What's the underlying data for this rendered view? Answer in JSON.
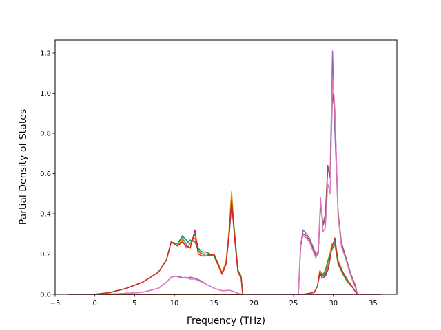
{
  "chart_data": {
    "type": "line",
    "title": "",
    "xlabel": "Frequency (THz)",
    "ylabel": "Partial Density of States",
    "xlim": [
      -5.0,
      38.0
    ],
    "ylim": [
      0.0,
      1.265
    ],
    "grid": false,
    "x_ticks": [
      -5,
      0,
      5,
      10,
      15,
      20,
      25,
      30,
      35
    ],
    "x_tick_labels": [
      "−5",
      "0",
      "5",
      "10",
      "15",
      "20",
      "25",
      "30",
      "35"
    ],
    "y_ticks": [
      0.0,
      0.2,
      0.4,
      0.6,
      0.8,
      1.0,
      1.2
    ],
    "y_tick_labels": [
      "0.0",
      "0.2",
      "0.4",
      "0.6",
      "0.8",
      "1.0",
      "1.2"
    ],
    "series": [
      {
        "color": "#1f77b4",
        "x": [
          -3.3,
          0,
          2,
          4,
          6,
          8,
          9,
          9.6,
          10.4,
          11.0,
          11.5,
          12.0,
          12.6,
          13.0,
          13.5,
          14.0,
          15.0,
          16.0,
          16.5,
          16.9,
          17.2,
          17.6,
          18.0,
          18.4,
          18.6,
          36.0
        ],
        "y": [
          0,
          0,
          0.01,
          0.03,
          0.06,
          0.11,
          0.17,
          0.26,
          0.25,
          0.29,
          0.27,
          0.25,
          0.3,
          0.23,
          0.21,
          0.21,
          0.19,
          0.1,
          0.15,
          0.3,
          0.44,
          0.3,
          0.12,
          0.09,
          0,
          0
        ]
      },
      {
        "color": "#ff7f0e",
        "x": [
          -3.3,
          0,
          2,
          4,
          6,
          8,
          9,
          9.6,
          10.4,
          11.0,
          11.5,
          12.0,
          12.6,
          13.0,
          13.5,
          14.0,
          15.0,
          16.0,
          16.5,
          16.9,
          17.2,
          17.6,
          18.0,
          18.4,
          18.6,
          36.0
        ],
        "y": [
          0,
          0,
          0.01,
          0.03,
          0.06,
          0.11,
          0.17,
          0.26,
          0.24,
          0.27,
          0.23,
          0.25,
          0.28,
          0.21,
          0.2,
          0.19,
          0.2,
          0.11,
          0.16,
          0.33,
          0.51,
          0.28,
          0.11,
          0.08,
          0,
          0
        ]
      },
      {
        "color": "#2ca02c",
        "x": [
          -3.3,
          0,
          2,
          4,
          6,
          8,
          9,
          9.6,
          10.4,
          11.0,
          11.5,
          12.0,
          12.6,
          13.0,
          13.5,
          14.0,
          15.0,
          16.0,
          16.5,
          16.9,
          17.2,
          17.6,
          18.0,
          18.4,
          18.6,
          36.0
        ],
        "y": [
          0,
          0,
          0.01,
          0.03,
          0.06,
          0.11,
          0.17,
          0.26,
          0.25,
          0.28,
          0.25,
          0.27,
          0.26,
          0.22,
          0.2,
          0.2,
          0.19,
          0.1,
          0.15,
          0.31,
          0.47,
          0.29,
          0.12,
          0.09,
          0,
          0
        ]
      },
      {
        "color": "#d62728",
        "x": [
          -3.3,
          0,
          2,
          4,
          6,
          8,
          9,
          9.6,
          10.4,
          11.0,
          11.5,
          12.0,
          12.6,
          13.0,
          13.5,
          14.0,
          15.0,
          16.0,
          16.5,
          16.9,
          17.2,
          17.6,
          18.0,
          18.4,
          18.6,
          36.0
        ],
        "y": [
          0,
          0,
          0.01,
          0.03,
          0.06,
          0.11,
          0.17,
          0.26,
          0.24,
          0.26,
          0.24,
          0.23,
          0.32,
          0.2,
          0.19,
          0.19,
          0.2,
          0.1,
          0.15,
          0.3,
          0.46,
          0.27,
          0.11,
          0.08,
          0,
          0
        ]
      },
      {
        "color": "#9467bd",
        "x": [
          -3.3,
          25.6,
          25.9,
          26.2,
          26.6,
          27.0,
          27.4,
          27.8,
          28.1,
          28.4,
          28.7,
          29.0,
          29.3,
          29.6,
          29.9,
          30.2,
          30.6,
          31.0,
          31.6,
          32.2,
          32.8,
          33.0,
          36.0
        ],
        "y": [
          0,
          0,
          0.25,
          0.32,
          0.3,
          0.28,
          0.24,
          0.2,
          0.21,
          0.46,
          0.35,
          0.4,
          0.62,
          0.6,
          1.21,
          0.8,
          0.4,
          0.25,
          0.18,
          0.1,
          0.04,
          0,
          0
        ]
      },
      {
        "color": "#8c564b",
        "x": [
          -3.3,
          25.6,
          25.9,
          26.2,
          26.6,
          27.0,
          27.4,
          27.8,
          28.1,
          28.4,
          28.7,
          29.0,
          29.3,
          29.6,
          29.9,
          30.2,
          30.6,
          31.0,
          31.6,
          32.2,
          32.8,
          33.0,
          36.0
        ],
        "y": [
          0,
          0,
          0.24,
          0.3,
          0.29,
          0.27,
          0.23,
          0.19,
          0.2,
          0.45,
          0.34,
          0.38,
          0.64,
          0.58,
          1.0,
          0.9,
          0.41,
          0.26,
          0.18,
          0.1,
          0.04,
          0,
          0
        ]
      },
      {
        "color": "#e377c2",
        "x": [
          -3.3,
          25.6,
          25.9,
          26.2,
          26.6,
          27.0,
          27.4,
          27.8,
          28.1,
          28.4,
          28.7,
          29.0,
          29.3,
          29.6,
          29.9,
          30.2,
          30.6,
          31.0,
          31.6,
          32.2,
          32.8,
          33.0,
          36.0
        ],
        "y": [
          0,
          0,
          0.26,
          0.29,
          0.28,
          0.26,
          0.22,
          0.18,
          0.22,
          0.48,
          0.31,
          0.33,
          0.55,
          0.5,
          1.08,
          0.92,
          0.39,
          0.24,
          0.17,
          0.09,
          0.03,
          0,
          0
        ]
      },
      {
        "color": "#1f77b4",
        "x": [
          -3.3,
          25.6,
          26.2,
          27.0,
          27.6,
          28.0,
          28.3,
          28.6,
          29.0,
          29.4,
          29.8,
          30.2,
          30.6,
          31.2,
          31.8,
          32.5,
          33.0,
          36.0
        ],
        "y": [
          0,
          0,
          0,
          0.005,
          0.01,
          0.04,
          0.11,
          0.09,
          0.1,
          0.15,
          0.24,
          0.26,
          0.16,
          0.11,
          0.07,
          0.03,
          0,
          0
        ]
      },
      {
        "color": "#ff7f0e",
        "x": [
          -3.3,
          25.6,
          26.2,
          27.0,
          27.6,
          28.0,
          28.3,
          28.6,
          29.0,
          29.4,
          29.8,
          30.2,
          30.6,
          31.2,
          31.8,
          32.5,
          33.0,
          36.0
        ],
        "y": [
          0,
          0,
          0,
          0.005,
          0.01,
          0.04,
          0.12,
          0.1,
          0.11,
          0.16,
          0.25,
          0.24,
          0.17,
          0.11,
          0.07,
          0.03,
          0,
          0
        ]
      },
      {
        "color": "#2ca02c",
        "x": [
          -3.3,
          25.6,
          26.2,
          27.0,
          27.6,
          28.0,
          28.3,
          28.6,
          29.0,
          29.4,
          29.8,
          30.2,
          30.6,
          31.2,
          31.8,
          32.5,
          33.0,
          36.0
        ],
        "y": [
          0,
          0,
          0,
          0.005,
          0.01,
          0.04,
          0.1,
          0.09,
          0.12,
          0.18,
          0.22,
          0.25,
          0.15,
          0.1,
          0.06,
          0.03,
          0,
          0
        ]
      },
      {
        "color": "#d62728",
        "x": [
          -3.3,
          25.6,
          26.2,
          27.0,
          27.6,
          28.0,
          28.3,
          28.6,
          29.0,
          29.4,
          29.8,
          30.2,
          30.6,
          31.2,
          31.8,
          32.5,
          33.0,
          36.0
        ],
        "y": [
          0,
          0,
          0,
          0.005,
          0.01,
          0.04,
          0.11,
          0.08,
          0.09,
          0.13,
          0.23,
          0.28,
          0.16,
          0.11,
          0.07,
          0.03,
          0,
          0
        ]
      },
      {
        "color": "#9467bd",
        "x": [
          -3.3,
          0,
          3,
          6,
          8,
          9,
          9.6,
          10.2,
          10.8,
          11.4,
          12.0,
          12.6,
          13.2,
          14.0,
          15.0,
          16.0,
          17.0,
          17.6,
          18.0,
          18.6,
          36.0
        ],
        "y": [
          0,
          0,
          0.003,
          0.01,
          0.03,
          0.06,
          0.085,
          0.09,
          0.085,
          0.08,
          0.085,
          0.08,
          0.07,
          0.05,
          0.03,
          0.018,
          0.02,
          0.012,
          0.004,
          0,
          0
        ]
      },
      {
        "color": "#e377c2",
        "x": [
          -3.3,
          0,
          3,
          6,
          8,
          9,
          9.6,
          10.2,
          10.8,
          11.4,
          12.0,
          12.6,
          13.2,
          14.0,
          15.0,
          16.0,
          17.0,
          17.6,
          18.0,
          18.6,
          36.0
        ],
        "y": [
          0,
          0,
          0.003,
          0.01,
          0.03,
          0.06,
          0.085,
          0.09,
          0.08,
          0.085,
          0.075,
          0.075,
          0.065,
          0.05,
          0.03,
          0.018,
          0.02,
          0.012,
          0.004,
          0,
          0
        ]
      }
    ]
  }
}
